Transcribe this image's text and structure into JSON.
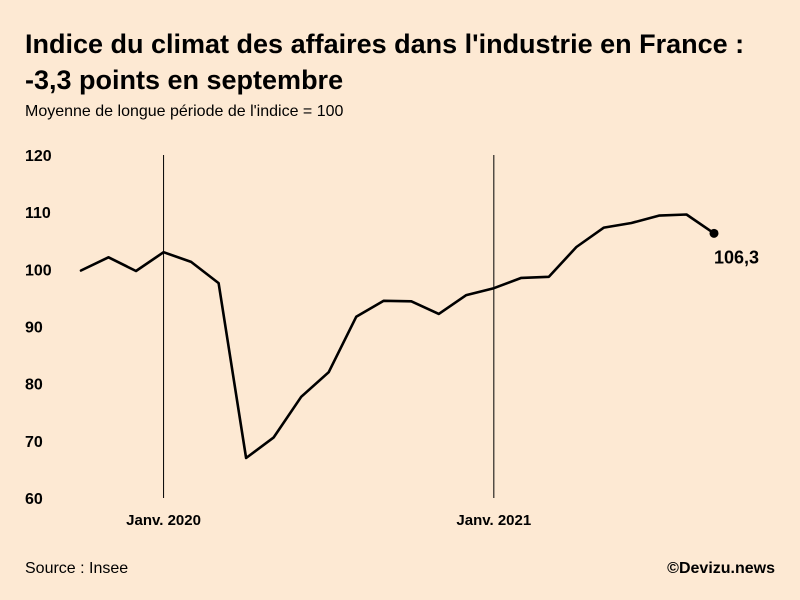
{
  "chart_data": {
    "type": "line",
    "title_line1": "Indice du climat des affaires dans l'industrie en France :",
    "title_line2": "-3,3 points en septembre",
    "subtitle": "Moyenne de longue période de l'indice = 100",
    "ylim": [
      60,
      120
    ],
    "yticks": [
      120,
      110,
      100,
      90,
      80,
      70,
      60
    ],
    "x_ticks": [
      {
        "label": "Janv. 2020",
        "index": 3
      },
      {
        "label": "Janv. 2021",
        "index": 15
      }
    ],
    "series": [
      {
        "x": [
          "2019-10",
          "2019-11",
          "2019-12",
          "2020-01",
          "2020-02",
          "2020-03",
          "2020-04",
          "2020-05",
          "2020-06",
          "2020-07",
          "2020-08",
          "2020-09",
          "2020-10",
          "2020-11",
          "2020-12",
          "2021-01",
          "2021-02",
          "2021-03",
          "2021-04",
          "2021-05",
          "2021-06",
          "2021-07",
          "2021-08",
          "2021-09"
        ],
        "values": [
          99.8,
          102.1,
          99.7,
          103.0,
          101.3,
          97.6,
          67.0,
          70.6,
          77.7,
          82.0,
          91.7,
          94.5,
          94.4,
          92.2,
          95.5,
          96.7,
          98.5,
          98.7,
          103.9,
          107.3,
          108.1,
          109.4,
          109.6,
          106.3
        ]
      }
    ],
    "end_label": "106,3",
    "source": "Source : Insee",
    "credit": "©Devizu.news",
    "line_color": "#000000",
    "background_color": "#fde9d3"
  }
}
